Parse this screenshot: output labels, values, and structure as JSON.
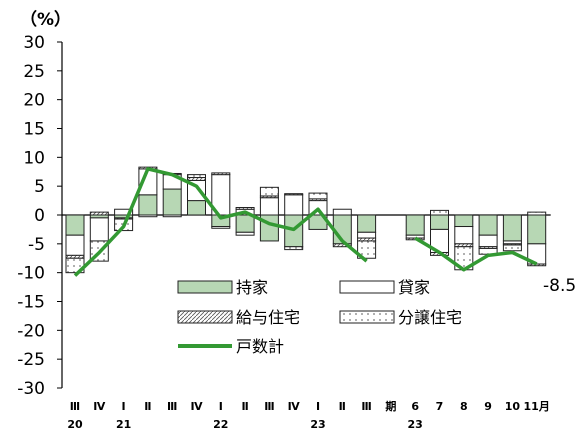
{
  "chart_data": {
    "type": "bar",
    "unit_label": "（%）",
    "ylim": [
      -30,
      30
    ],
    "y_ticks": [
      30,
      25,
      20,
      15,
      10,
      5,
      0,
      -5,
      -10,
      -15,
      -20,
      -25,
      -30
    ],
    "categories": [
      "Ⅲ",
      "Ⅳ",
      "Ⅰ",
      "Ⅱ",
      "Ⅲ",
      "Ⅳ",
      "Ⅰ",
      "Ⅱ",
      "Ⅲ",
      "Ⅳ",
      "Ⅰ",
      "Ⅱ",
      "Ⅲ",
      "期",
      "6",
      "7",
      "8",
      "9",
      "10",
      "11月"
    ],
    "year_labels": [
      {
        "label": "20",
        "category_index": 0
      },
      {
        "label": "21",
        "category_index": 2
      },
      {
        "label": "22",
        "category_index": 6
      },
      {
        "label": "23",
        "category_index": 10
      },
      {
        "label": "23",
        "category_index": 14
      }
    ],
    "series": [
      {
        "name": "持家",
        "color": "#b7d7b4",
        "pattern": "solid",
        "values": [
          -3.5,
          -0.5,
          -0.5,
          3.5,
          4.5,
          2.5,
          -2.0,
          -3.0,
          -4.5,
          -5.5,
          -2.5,
          -5.0,
          -3.0,
          null,
          -3.5,
          -2.5,
          -2.0,
          -3.5,
          -4.5,
          -5.0
        ]
      },
      {
        "name": "貸家",
        "color": "#ffffff",
        "pattern": "solid",
        "values": [
          -3.5,
          -4.0,
          1.0,
          4.5,
          2.5,
          3.5,
          7.0,
          1.0,
          3.0,
          3.5,
          2.5,
          1.0,
          -1.0,
          null,
          -0.5,
          -4.0,
          -3.0,
          -2.0,
          -0.5,
          -3.5
        ]
      },
      {
        "name": "給与住宅",
        "color": "#ffffff",
        "pattern": "diagonal",
        "values": [
          -0.5,
          0.5,
          -0.2,
          0.3,
          0.2,
          0.5,
          0.3,
          0.3,
          0.3,
          0.2,
          0.3,
          -0.5,
          -0.5,
          null,
          -0.3,
          -0.5,
          -0.5,
          -0.3,
          -0.2,
          -0.3
        ]
      },
      {
        "name": "分譲住宅",
        "color": "#ffffff",
        "pattern": "dots",
        "values": [
          -2.5,
          -3.5,
          -2.0,
          -0.3,
          -0.3,
          0.5,
          -0.3,
          -0.5,
          1.5,
          -0.5,
          1.0,
          0.0,
          -3.0,
          null,
          0.0,
          0.8,
          -4.0,
          -1.0,
          -1.0,
          0.5
        ]
      },
      {
        "name": "戸数計",
        "color": "#339933",
        "type": "line",
        "values": [
          -10.5,
          -6.5,
          -2.0,
          8.0,
          7.0,
          5.0,
          -0.5,
          0.5,
          -1.5,
          -2.5,
          1.0,
          -4.5,
          -8.0,
          null,
          -4.0,
          -6.5,
          -9.5,
          -7.0,
          -6.5,
          -8.5
        ]
      }
    ],
    "annotations": [
      {
        "text": "-8.5",
        "category_index": 19
      }
    ],
    "legend_position": "inside-bottom",
    "grid": false
  }
}
